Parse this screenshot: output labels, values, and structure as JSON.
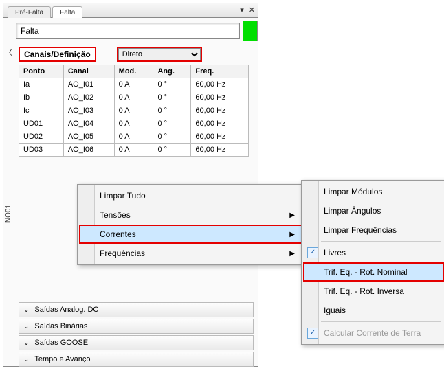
{
  "tabs": {
    "prev": "Pré-Falta",
    "active": "Falta"
  },
  "title_value": "Falta",
  "sidebar_label": "NO01",
  "header_label": "Canais/Definição",
  "mode_options": [
    "Direto"
  ],
  "mode_selected": "Direto",
  "columns": [
    "Ponto",
    "Canal",
    "Mod.",
    "Ang.",
    "Freq."
  ],
  "rows": [
    [
      "Ia",
      "AO_I01",
      "0 A",
      "0 °",
      "60,00 Hz"
    ],
    [
      "Ib",
      "AO_I02",
      "0 A",
      "0 °",
      "60,00 Hz"
    ],
    [
      "Ic",
      "AO_I03",
      "0 A",
      "0 °",
      "60,00 Hz"
    ],
    [
      "UD01",
      "AO_I04",
      "0 A",
      "0 °",
      "60,00 Hz"
    ],
    [
      "UD02",
      "AO_I05",
      "0 A",
      "0 °",
      "60,00 Hz"
    ],
    [
      "UD03",
      "AO_I06",
      "0 A",
      "0 °",
      "60,00 Hz"
    ]
  ],
  "accordion": [
    "Saídas Analog. DC",
    "Saídas Binárias",
    "Saídas GOOSE",
    "Tempo e Avanço"
  ],
  "menu1": {
    "clear_all": "Limpar Tudo",
    "voltages": "Tensões",
    "currents": "Correntes",
    "freqs": "Frequências"
  },
  "menu2": {
    "clear_mod": "Limpar Módulos",
    "clear_ang": "Limpar Ângulos",
    "clear_freq": "Limpar Frequências",
    "free": "Livres",
    "trif_nom": "Trif. Eq. - Rot. Nominal",
    "trif_inv": "Trif. Eq. - Rot. Inversa",
    "iguais": "Iguais",
    "calc_ct": "Calcular Corrente de Terra"
  },
  "colors": {
    "highlight_red": "#e40000",
    "menu_highlight": "#cde8ff",
    "status_green": "#00df00"
  }
}
